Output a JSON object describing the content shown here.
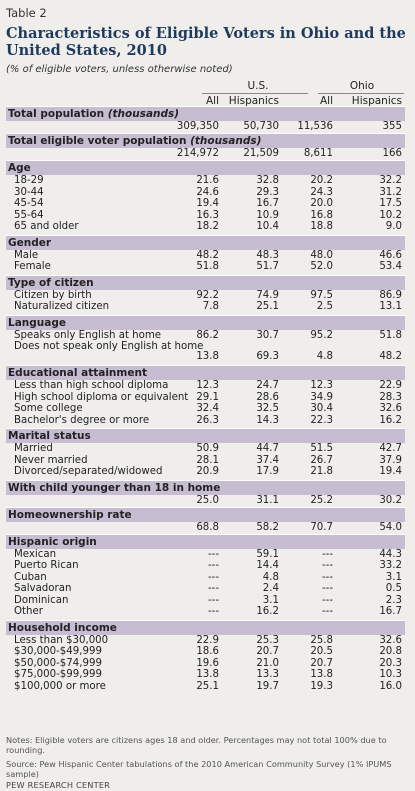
{
  "table_label": "Table 2",
  "title": "Characteristics of Eligible Voters in Ohio and the United States, 2010",
  "subtitle": "(% of eligible voters, unless otherwise noted)",
  "groups": {
    "us": "U.S.",
    "ohio": "Ohio"
  },
  "col_headers": [
    "All",
    "Hispanics",
    "All",
    "Hispanics"
  ],
  "sections": [
    {
      "header": "Total population (thousands)",
      "header_italic": "(thousands)",
      "header_plain": "Total population ",
      "values": [
        "309,350",
        "50,730",
        "11,536",
        "355"
      ],
      "rows": []
    },
    {
      "header_plain": "Total eligible voter population ",
      "header_italic": "(thousands)",
      "values": [
        "214,972",
        "21,509",
        "8,611",
        "166"
      ],
      "rows": []
    },
    {
      "header_plain": "Age",
      "rows": [
        {
          "label": "18-29",
          "values": [
            "21.6",
            "32.8",
            "20.2",
            "32.2"
          ]
        },
        {
          "label": "30-44",
          "values": [
            "24.6",
            "29.3",
            "24.3",
            "31.2"
          ]
        },
        {
          "label": "45-54",
          "values": [
            "19.4",
            "16.7",
            "20.0",
            "17.5"
          ]
        },
        {
          "label": "55-64",
          "values": [
            "16.3",
            "10.9",
            "16.8",
            "10.2"
          ]
        },
        {
          "label": "65 and older",
          "values": [
            "18.2",
            "10.4",
            "18.8",
            "9.0"
          ]
        }
      ]
    },
    {
      "header_plain": "Gender",
      "rows": [
        {
          "label": "Male",
          "values": [
            "48.2",
            "48.3",
            "48.0",
            "46.6"
          ]
        },
        {
          "label": "Female",
          "values": [
            "51.8",
            "51.7",
            "52.0",
            "53.4"
          ]
        }
      ]
    },
    {
      "header_plain": "Type of citizen",
      "rows": [
        {
          "label": "Citizen by birth",
          "values": [
            "92.2",
            "74.9",
            "97.5",
            "86.9"
          ]
        },
        {
          "label": "Naturalized citizen",
          "values": [
            "7.8",
            "25.1",
            "2.5",
            "13.1"
          ]
        }
      ]
    },
    {
      "header_plain": "Language",
      "rows": [
        {
          "label": "Speaks only English at home",
          "values": [
            "86.2",
            "30.7",
            "95.2",
            "51.8"
          ]
        },
        {
          "label": "Does not speak only English at home",
          "values": [
            "13.8",
            "69.3",
            "4.8",
            "48.2"
          ],
          "wrap": true
        }
      ]
    },
    {
      "header_plain": "Educational attainment",
      "rows": [
        {
          "label": "Less than high school diploma",
          "values": [
            "12.3",
            "24.7",
            "12.3",
            "22.9"
          ]
        },
        {
          "label": "High school diploma or equivalent",
          "values": [
            "29.1",
            "28.6",
            "34.9",
            "28.3"
          ]
        },
        {
          "label": "Some college",
          "values": [
            "32.4",
            "32.5",
            "30.4",
            "32.6"
          ]
        },
        {
          "label": "Bachelor's degree or more",
          "values": [
            "26.3",
            "14.3",
            "22.3",
            "16.2"
          ]
        }
      ]
    },
    {
      "header_plain": "Marital status",
      "rows": [
        {
          "label": "Married",
          "values": [
            "50.9",
            "44.7",
            "51.5",
            "42.7"
          ]
        },
        {
          "label": "Never married",
          "values": [
            "28.1",
            "37.4",
            "26.7",
            "37.9"
          ]
        },
        {
          "label": "Divorced/separated/widowed",
          "values": [
            "20.9",
            "17.9",
            "21.8",
            "19.4"
          ]
        }
      ]
    },
    {
      "header_plain": "With child younger than 18 in home",
      "values": [
        "25.0",
        "31.1",
        "25.2",
        "30.2"
      ],
      "rows": []
    },
    {
      "header_plain": "Homeownership rate",
      "values": [
        "68.8",
        "58.2",
        "70.7",
        "54.0"
      ],
      "rows": []
    },
    {
      "header_plain": "Hispanic origin",
      "rows": [
        {
          "label": "Mexican",
          "values": [
            "---",
            "59.1",
            "---",
            "44.3"
          ]
        },
        {
          "label": "Puerto Rican",
          "values": [
            "---",
            "14.4",
            "---",
            "33.2"
          ]
        },
        {
          "label": "Cuban",
          "values": [
            "---",
            "4.8",
            "---",
            "3.1"
          ]
        },
        {
          "label": "Salvadoran",
          "values": [
            "---",
            "2.4",
            "---",
            "0.5"
          ]
        },
        {
          "label": "Dominican",
          "values": [
            "---",
            "3.1",
            "---",
            "2.3"
          ]
        },
        {
          "label": "Other",
          "values": [
            "---",
            "16.2",
            "---",
            "16.7"
          ]
        }
      ]
    },
    {
      "header_plain": "Household income",
      "rows": [
        {
          "label": "Less than $30,000",
          "values": [
            "22.9",
            "25.3",
            "25.8",
            "32.6"
          ]
        },
        {
          "label": "$30,000-$49,999",
          "values": [
            "18.6",
            "20.7",
            "20.5",
            "20.8"
          ]
        },
        {
          "label": "$50,000-$74,999",
          "values": [
            "19.6",
            "21.0",
            "20.7",
            "20.3"
          ]
        },
        {
          "label": "$75,000-$99,999",
          "values": [
            "13.8",
            "13.3",
            "13.8",
            "10.3"
          ]
        },
        {
          "label": "$100,000 or more",
          "values": [
            "25.1",
            "19.7",
            "19.3",
            "16.0"
          ]
        }
      ]
    }
  ],
  "notes": "Notes: Eligible voters are citizens ages 18 and older. Percentages may not total 100% due to rounding.",
  "source": "Source: Pew Hispanic Center tabulations of the 2010 American Community Survey (1% IPUMS sample)",
  "org": "PEW RESEARCH CENTER",
  "colors": {
    "section_band": "#c7bdd3",
    "title": "#1f3a5f",
    "background": "#efeeea"
  }
}
